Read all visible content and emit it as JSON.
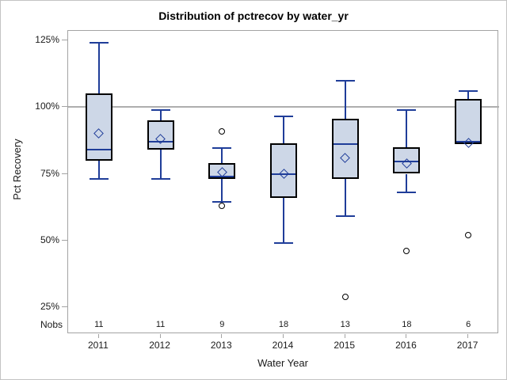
{
  "chart_data": {
    "type": "boxplot",
    "title": "Distribution of pctrecov by water_yr",
    "xlabel": "Water Year",
    "ylabel": "Pct Recovery",
    "nobs_label": "Nobs",
    "y_ticks": [
      125,
      100,
      75,
      50,
      25
    ],
    "y_tick_suffix": "%",
    "ylim": [
      15,
      128.5
    ],
    "reference_line": 100,
    "grid": false,
    "legend": "none",
    "categories": [
      "2011",
      "2012",
      "2013",
      "2014",
      "2015",
      "2016",
      "2017"
    ],
    "boxes": [
      {
        "category": "2011",
        "nobs": 11,
        "whisker_low": 73,
        "q1": 80,
        "median": 84,
        "q3": 105,
        "whisker_high": 124,
        "mean": 90,
        "outliers": []
      },
      {
        "category": "2012",
        "nobs": 11,
        "whisker_low": 73,
        "q1": 84,
        "median": 87,
        "q3": 95,
        "whisker_high": 99,
        "mean": 88,
        "outliers": []
      },
      {
        "category": "2013",
        "nobs": 9,
        "whisker_low": 64.5,
        "q1": 73,
        "median": 74,
        "q3": 79,
        "whisker_high": 84.5,
        "mean": 75.5,
        "outliers": [
          91,
          63
        ]
      },
      {
        "category": "2014",
        "nobs": 18,
        "whisker_low": 49,
        "q1": 66,
        "median": 75,
        "q3": 86.5,
        "whisker_high": 96.5,
        "mean": 75,
        "outliers": []
      },
      {
        "category": "2015",
        "nobs": 13,
        "whisker_low": 59,
        "q1": 73,
        "median": 86,
        "q3": 95.5,
        "whisker_high": 110,
        "mean": 81,
        "outliers": [
          29
        ]
      },
      {
        "category": "2016",
        "nobs": 18,
        "whisker_low": 68,
        "q1": 75,
        "median": 79.5,
        "q3": 85,
        "whisker_high": 99,
        "mean": 79,
        "outliers": [
          46
        ]
      },
      {
        "category": "2017",
        "nobs": 6,
        "whisker_low": 86,
        "q1": 86,
        "median": 87,
        "q3": 103,
        "whisker_high": 106,
        "mean": 86.5,
        "outliers": [
          52
        ]
      }
    ],
    "colors": {
      "box_fill": "#cdd7e7",
      "box_border": "#000000",
      "line": "#1f3d99",
      "reference_line": "#aeaeae",
      "axis_frame": "#a3a3a3",
      "tick": "#a3a3a3",
      "outlier": "#000000",
      "text": "#1a1a1a"
    }
  }
}
